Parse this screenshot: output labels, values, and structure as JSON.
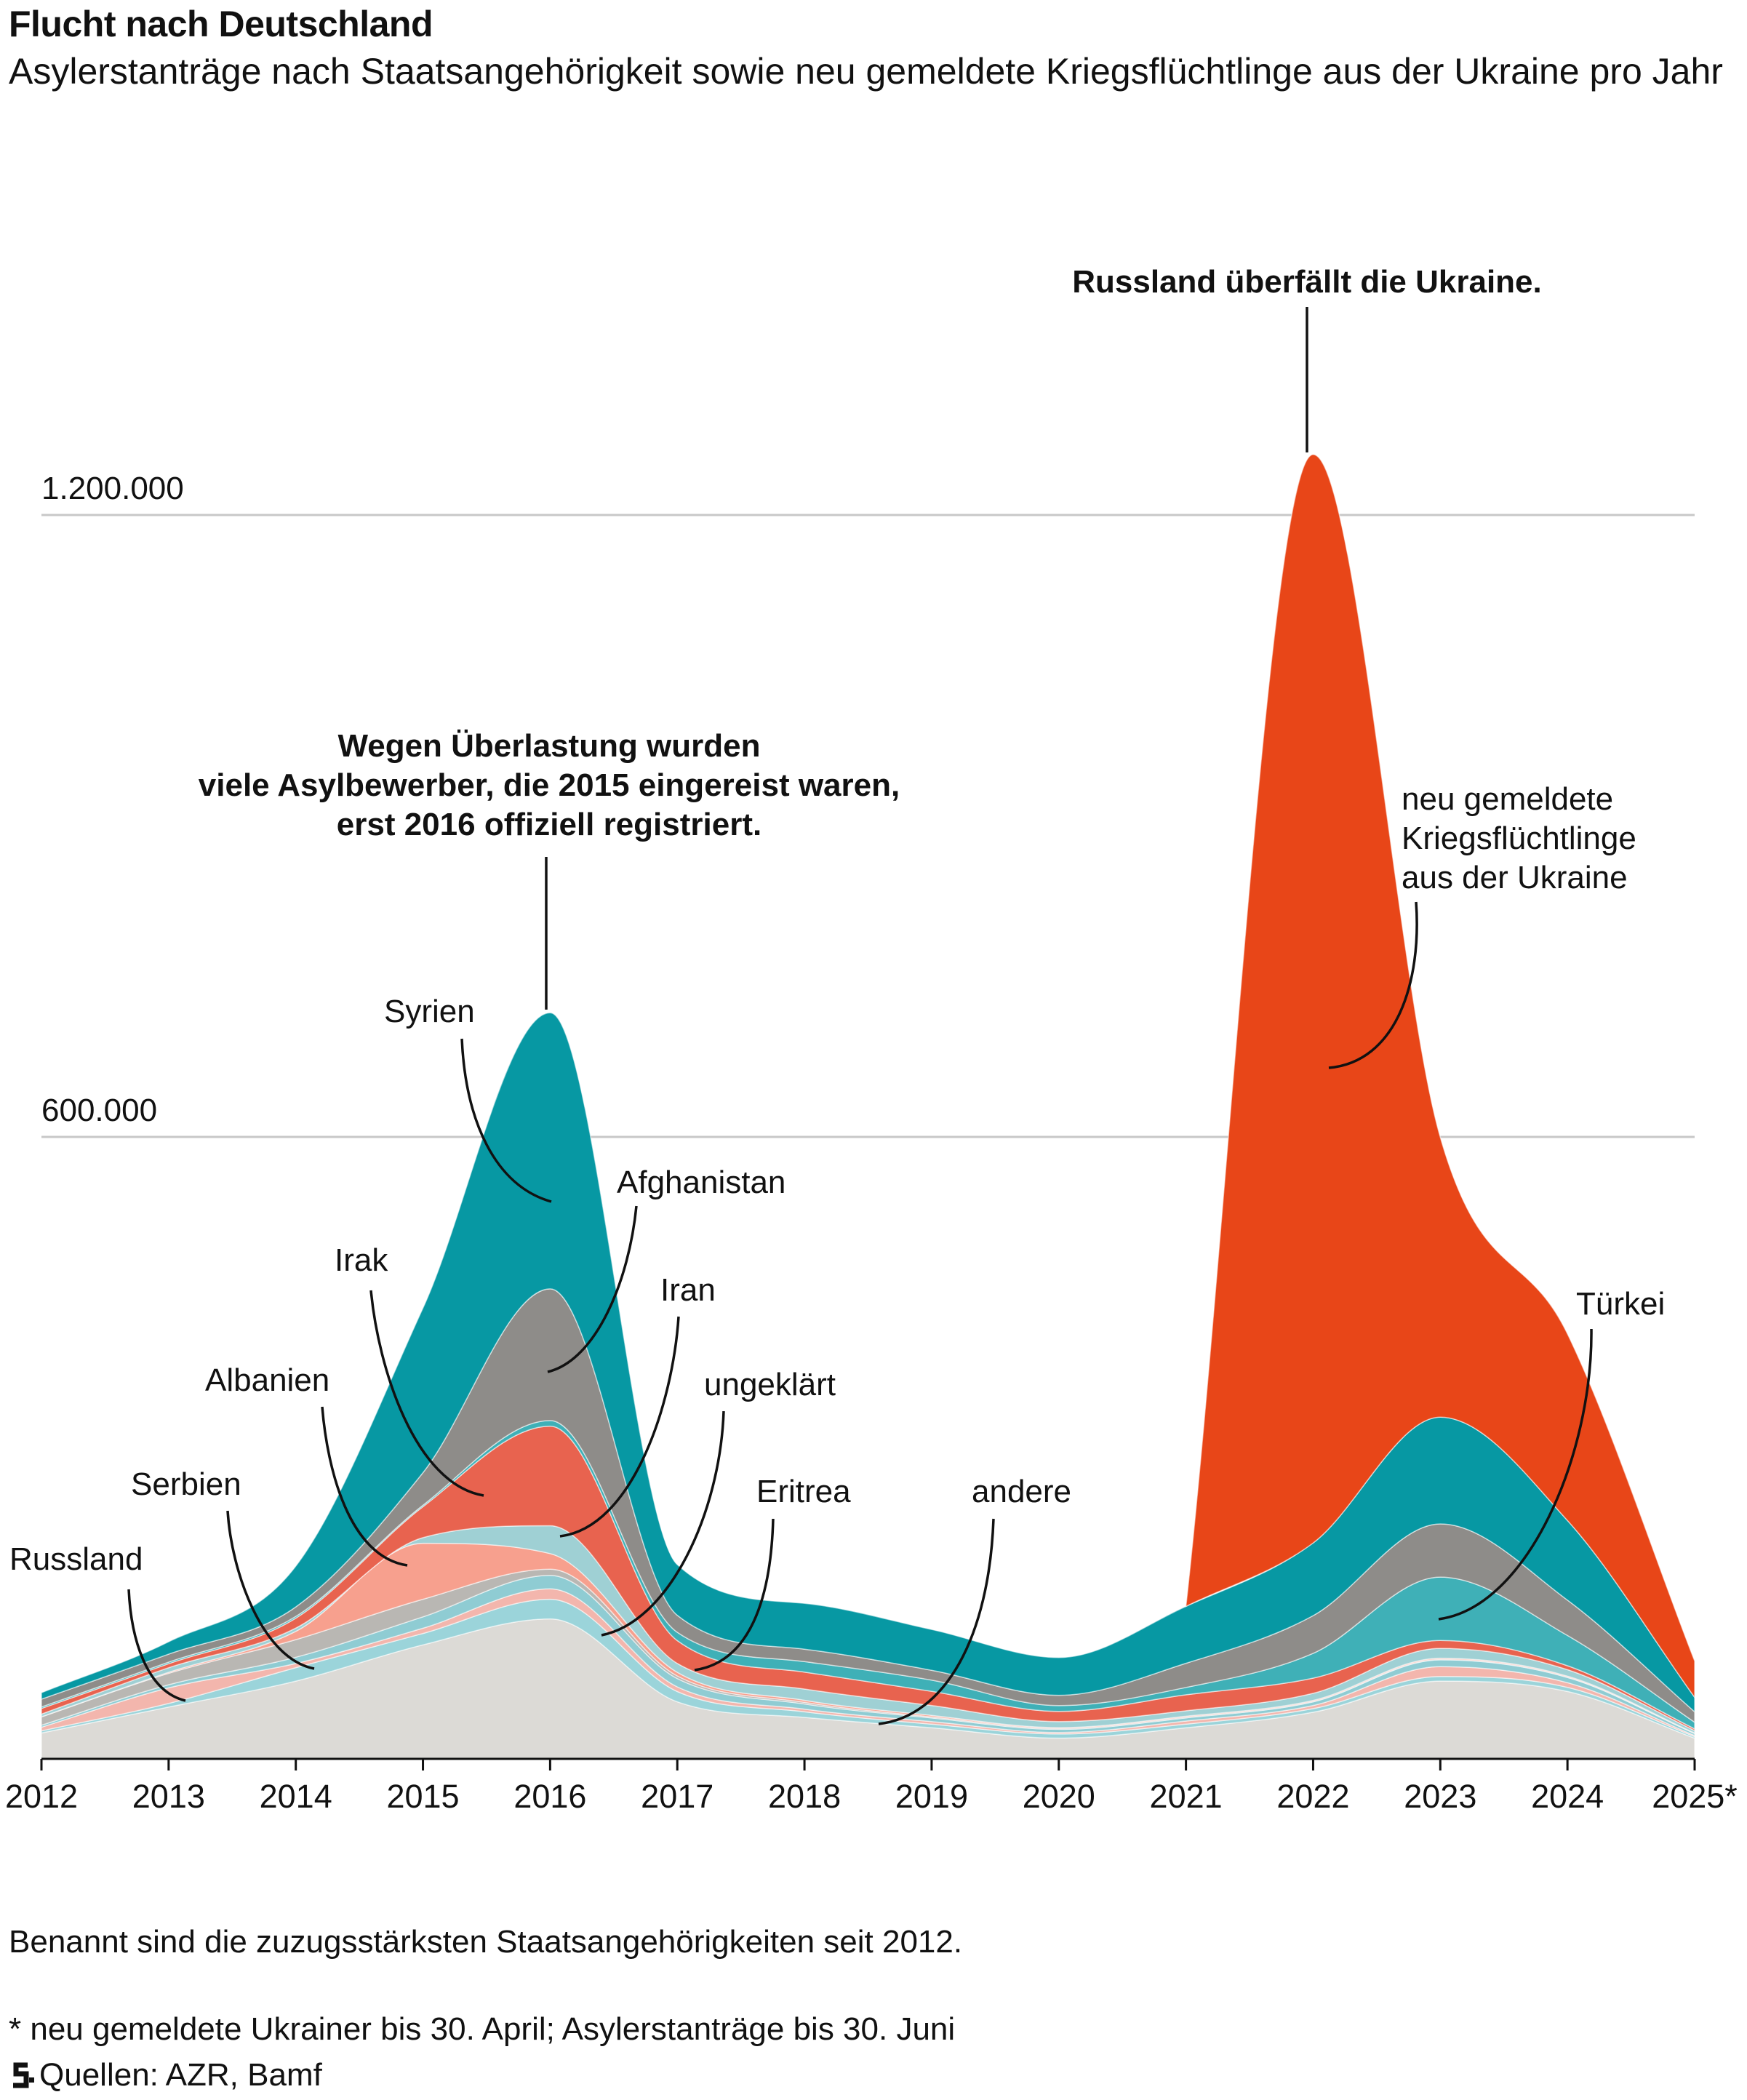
{
  "header": {
    "title": "Flucht nach Deutschland",
    "subtitle": "Asylerstanträge nach Staatsangehörigkeit sowie neu gemeldete Kriegsflüchtlinge aus der Ukraine pro Jahr"
  },
  "chart_data": {
    "type": "area",
    "stacked": true,
    "title": "Flucht nach Deutschland",
    "x": [
      2012,
      2013,
      2014,
      2015,
      2016,
      2017,
      2018,
      2019,
      2020,
      2021,
      2022,
      2023,
      2024,
      2025
    ],
    "x_tick_labels": [
      "2012",
      "2013",
      "2014",
      "2015",
      "2016",
      "2017",
      "2018",
      "2019",
      "2020",
      "2021",
      "2022",
      "2023",
      "2024",
      "2025*"
    ],
    "y_ticks": [
      600000,
      1200000
    ],
    "y_tick_labels": [
      "600.000",
      "1.200.000"
    ],
    "ylim": [
      0,
      1300000
    ],
    "grid": true,
    "series": [
      {
        "name": "andere",
        "color": "#dcdad6",
        "values": [
          25000,
          50000,
          75000,
          110000,
          135000,
          55000,
          40000,
          30000,
          20000,
          30000,
          45000,
          75000,
          65000,
          20000
        ]
      },
      {
        "name": "Eritrea",
        "color": "#9bd4da",
        "values": [
          2000,
          3500,
          13000,
          11000,
          19000,
          10000,
          5500,
          3500,
          4000,
          3500,
          3500,
          4500,
          4000,
          1500
        ]
      },
      {
        "name": "Russland",
        "color": "#f3b6ad",
        "values": [
          3500,
          15000,
          4000,
          5000,
          10000,
          4500,
          2500,
          2500,
          1500,
          3000,
          3000,
          9500,
          4500,
          1000
        ]
      },
      {
        "name": "ungeklärt",
        "color": "#8fccd3",
        "values": [
          2000,
          3000,
          6000,
          11000,
          13000,
          8000,
          5000,
          3500,
          3000,
          3000,
          3500,
          6500,
          5000,
          2000
        ]
      },
      {
        "name": "Serbien",
        "color": "#b9b7b3",
        "values": [
          8000,
          11000,
          17000,
          17000,
          6000,
          2500,
          1500,
          1000,
          800,
          800,
          600,
          600,
          500,
          200
        ]
      },
      {
        "name": "Albanien",
        "color": "#f7a08e",
        "values": [
          200,
          1000,
          8000,
          54000,
          15000,
          3500,
          2000,
          1500,
          800,
          800,
          800,
          1000,
          800,
          300
        ]
      },
      {
        "name": "Iran",
        "color": "#9fd0d4",
        "values": [
          2500,
          4400,
          3200,
          5400,
          26900,
          8600,
          10900,
          9500,
          5900,
          5300,
          6800,
          9500,
          6200,
          2300
        ]
      },
      {
        "name": "Irak",
        "color": "#e8634f",
        "values": [
          5400,
          3900,
          9500,
          29800,
          96100,
          22000,
          16300,
          13700,
          9800,
          15400,
          14700,
          7600,
          3800,
          1700
        ]
      },
      {
        "name": "Türkei",
        "color": "#3fb0b7",
        "values": [
          1500,
          1500,
          1800,
          1500,
          5400,
          8000,
          10100,
          10800,
          5600,
          7100,
          23900,
          61200,
          29200,
          6400
        ]
      },
      {
        "name": "Afghanistan",
        "color": "#8e8c89",
        "values": [
          7500,
          7700,
          9100,
          31400,
          127000,
          16400,
          12000,
          9500,
          9900,
          23300,
          36400,
          51300,
          34100,
          10000
        ]
      },
      {
        "name": "Syrien",
        "color": "#0798a3",
        "values": [
          6200,
          11900,
          39300,
          158700,
          266300,
          48900,
          44200,
          39300,
          36400,
          54900,
          70100,
          102900,
          76800,
          14000
        ]
      },
      {
        "name": "neu gemeldete Kriegsflüchtlinge aus der Ukraine",
        "color": "#e84618",
        "values": [
          0,
          0,
          0,
          0,
          0,
          0,
          0,
          0,
          0,
          0,
          1050000,
          270000,
          180000,
          35000
        ]
      }
    ],
    "series_labels": {
      "Russland": "Russland",
      "Serbien": "Serbien",
      "Albanien": "Albanien",
      "Irak": "Irak",
      "Syrien": "Syrien",
      "Afghanistan": "Afghanistan",
      "Iran": "Iran",
      "ungeklärt": "ungeklärt",
      "Eritrea": "Eritrea",
      "andere": "andere",
      "Türkei": "Türkei",
      "ukraine_lines": [
        "neu gemeldete",
        "Kriegsflüchtlinge",
        "aus der Ukraine"
      ]
    },
    "annotations": {
      "overload_lines": [
        "Wegen Überlastung wurden",
        "viele Asylbewerber, die 2015 eingereist waren,",
        "erst 2016 offiziell registriert."
      ],
      "invasion": "Russland überfällt die Ukraine."
    }
  },
  "footer": {
    "note": "Benannt sind die zuzugsstärksten Staatsangehörigkeiten seit 2012.",
    "footnote": "* neu gemeldete Ukrainer bis 30. April; Asylerstanträge bis 30. Juni",
    "source": "Quellen: AZR, Bamf"
  }
}
